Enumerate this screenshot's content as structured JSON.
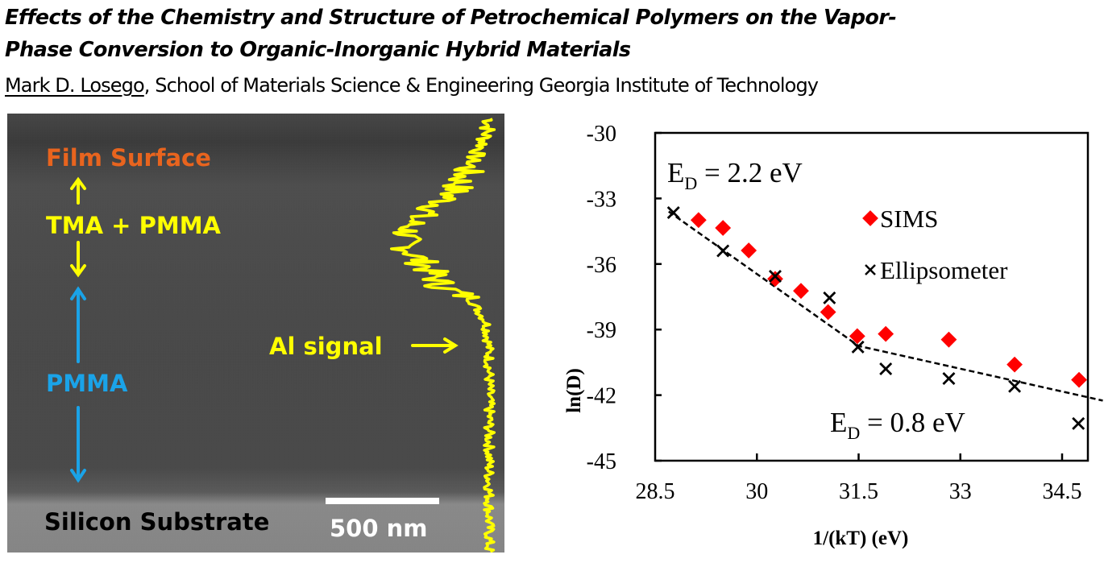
{
  "header": {
    "title_line1": "Effects of the Chemistry and Structure of Petrochemical Polymers on the Vapor-",
    "title_line2": "Phase Conversion to Organic-Inorganic Hybrid Materials",
    "author": "Mark D. Losego",
    "affiliation": ", School of Materials Science & Engineering Georgia Institute of Technology"
  },
  "sem_image": {
    "labels": {
      "film_surface": "Film Surface",
      "tma_pmma": "TMA + PMMA",
      "pmma": "PMMA",
      "al_signal": "Al signal",
      "silicon_substrate": "Silicon Substrate",
      "scale_bar": "500 nm"
    },
    "colors": {
      "film_surface": "#e8641e",
      "tma_pmma": "#ffff00",
      "pmma": "#1aa3e8",
      "al_signal": "#ffff00",
      "silicon_substrate": "#000000",
      "scale_bar": "#ffffff"
    }
  },
  "chart_data": {
    "type": "scatter",
    "title": "",
    "xlabel": "1/(kT) (eV)",
    "ylabel": "ln(D)",
    "xlim": [
      28.5,
      35.1
    ],
    "ylim": [
      -45,
      -30
    ],
    "xticks": [
      "28.5",
      "30",
      "31.5",
      "33",
      "34.5"
    ],
    "xtick_values": [
      28.5,
      30,
      31.5,
      33,
      34.5
    ],
    "yticks": [
      "-30",
      "-33",
      "-36",
      "-39",
      "-42",
      "-45"
    ],
    "ytick_values": [
      -30,
      -33,
      -36,
      -39,
      -42,
      -45
    ],
    "grid": false,
    "legend": "top-right",
    "series": [
      {
        "name": "SIMS",
        "marker": "diamond",
        "color": "#ff0000",
        "x": [
          29.14,
          29.5,
          29.88,
          30.27,
          30.65,
          31.05,
          31.48,
          31.9,
          32.83,
          33.8,
          34.75
        ],
        "y": [
          -33.99,
          -34.35,
          -35.38,
          -36.68,
          -37.23,
          -38.2,
          -39.3,
          -39.2,
          -39.46,
          -40.6,
          -41.3
        ]
      },
      {
        "name": "Ellipsometer",
        "marker": "x",
        "color": "#000000",
        "x": [
          28.77,
          29.5,
          30.27,
          31.07,
          31.49,
          31.9,
          32.83,
          33.8,
          34.74
        ],
        "y": [
          -33.65,
          -35.4,
          -36.56,
          -37.55,
          -39.8,
          -40.8,
          -41.24,
          -41.6,
          -43.3
        ]
      }
    ],
    "fit_line": {
      "style": "dashed",
      "x": [
        28.7,
        31.5,
        35.1
      ],
      "y": [
        -33.6,
        -39.75,
        -42.25
      ]
    },
    "annotations": [
      {
        "id": "ed_high",
        "main": "E",
        "sub": "D",
        "rest": " = 2.2 eV"
      },
      {
        "id": "ed_low",
        "main": "E",
        "sub": "D",
        "rest": " = 0.8 eV"
      }
    ]
  }
}
